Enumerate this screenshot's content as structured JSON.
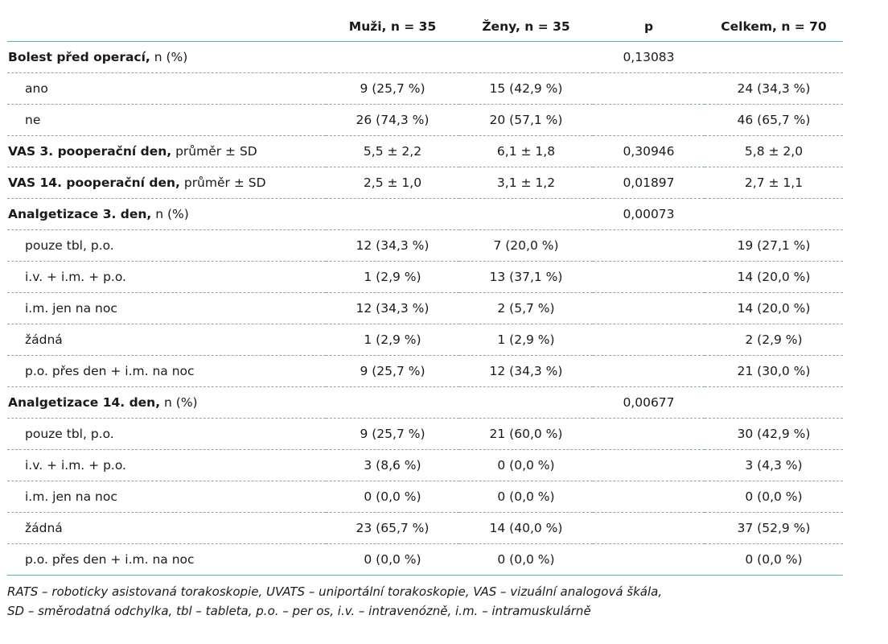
{
  "table": {
    "headers": [
      "",
      "Muži, n = 35",
      "Ženy, n = 35",
      "p",
      "Celkem, n = 70"
    ],
    "rows": [
      {
        "type": "section",
        "label_bold": "Bolest před operací,",
        "label_rest": " n (%)",
        "values": [
          "",
          "",
          "0,13083",
          ""
        ]
      },
      {
        "type": "sub",
        "label": "ano",
        "values": [
          "9 (25,7 %)",
          "15 (42,9 %)",
          "",
          "24 (34,3 %)"
        ]
      },
      {
        "type": "sub",
        "label": "ne",
        "values": [
          "26 (74,3 %)",
          "20 (57,1 %)",
          "",
          "46 (65,7 %)"
        ]
      },
      {
        "type": "section",
        "label_bold": "VAS 3. pooperační den,",
        "label_rest": " průměr ± SD",
        "values": [
          "5,5 ± 2,2",
          "6,1 ± 1,8",
          "0,30946",
          "5,8 ± 2,0"
        ]
      },
      {
        "type": "section",
        "label_bold": "VAS 14. pooperační den,",
        "label_rest": " průměr ± SD",
        "values": [
          "2,5 ± 1,0",
          "3,1 ± 1,2",
          "0,01897",
          "2,7 ± 1,1"
        ]
      },
      {
        "type": "section",
        "label_bold": "Analgetizace 3. den,",
        "label_rest": " n (%)",
        "values": [
          "",
          "",
          "0,00073",
          ""
        ]
      },
      {
        "type": "sub",
        "label": "pouze tbl, p.o.",
        "values": [
          "12 (34,3 %)",
          "7 (20,0 %)",
          "",
          "19 (27,1 %)"
        ]
      },
      {
        "type": "sub",
        "label": "i.v. + i.m. + p.o.",
        "values": [
          "1 (2,9 %)",
          "13 (37,1 %)",
          "",
          "14 (20,0 %)"
        ]
      },
      {
        "type": "sub",
        "label": "i.m. jen na noc",
        "values": [
          "12 (34,3 %)",
          "2 (5,7 %)",
          "",
          "14 (20,0 %)"
        ]
      },
      {
        "type": "sub",
        "label": "žádná",
        "values": [
          "1 (2,9 %)",
          "1 (2,9 %)",
          "",
          "2 (2,9 %)"
        ]
      },
      {
        "type": "sub",
        "label": "p.o. přes den + i.m. na noc",
        "values": [
          "9 (25,7 %)",
          "12 (34,3 %)",
          "",
          "21 (30,0 %)"
        ]
      },
      {
        "type": "section",
        "label_bold": "Analgetizace 14. den,",
        "label_rest": " n (%)",
        "values": [
          "",
          "",
          "0,00677",
          ""
        ]
      },
      {
        "type": "sub",
        "label": "pouze tbl, p.o.",
        "values": [
          "9 (25,7 %)",
          "21 (60,0 %)",
          "",
          "30 (42,9 %)"
        ]
      },
      {
        "type": "sub",
        "label": "i.v. + i.m. + p.o.",
        "values": [
          "3 (8,6 %)",
          "0 (0,0 %)",
          "",
          "3 (4,3 %)"
        ]
      },
      {
        "type": "sub",
        "label": "i.m. jen na noc",
        "values": [
          "0 (0,0 %)",
          "0 (0,0 %)",
          "",
          "0 (0,0 %)"
        ]
      },
      {
        "type": "sub",
        "label": "žádná",
        "values": [
          "23 (65,7 %)",
          "14 (40,0 %)",
          "",
          "37 (52,9 %)"
        ]
      },
      {
        "type": "sub",
        "label": "p.o. přes den + i.m. na noc",
        "values": [
          "0 (0,0 %)",
          "0 (0,0 %)",
          "",
          "0 (0,0 %)"
        ]
      }
    ]
  },
  "footnote": {
    "line1": "RATS – roboticky asistovaná torakoskopie, UVATS – uniportální torakoskopie, VAS – vizuální analogová škála,",
    "line2": "SD – směrodatná odchylka, tbl – tableta, p.o. – per os, i.v. – intravenózně, i.m. – intramuskulárně"
  },
  "colors": {
    "rule": "#4db0c6",
    "dashed": "#8aa7b5",
    "text": "#1a1a1a"
  }
}
